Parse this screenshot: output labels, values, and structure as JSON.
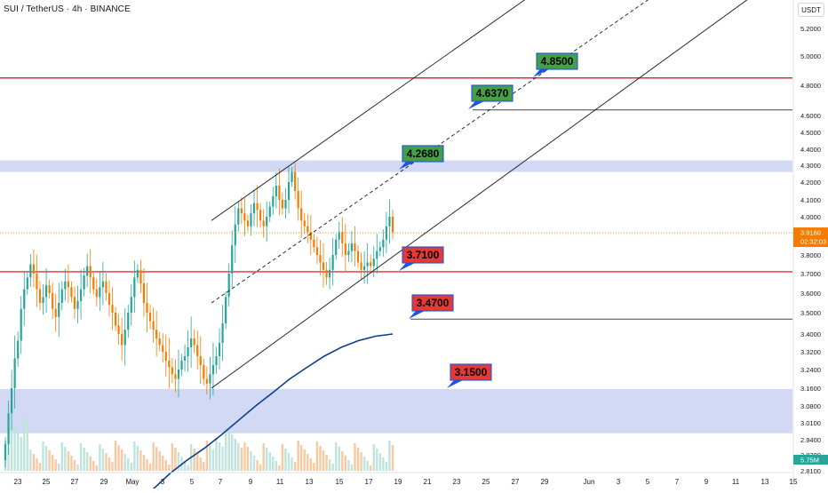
{
  "header": {
    "symbol_title": "SUI / TetherUS · 4h · BINANCE",
    "currency": "USDT"
  },
  "chart_data": {
    "type": "candlestick",
    "symbol": "SUI / TetherUS",
    "interval": "4h",
    "exchange": "BINANCE",
    "y_axis": {
      "ticks": [
        "5.2000",
        "5.0000",
        "4.8000",
        "4.6000",
        "4.5000",
        "4.4000",
        "4.3000",
        "4.2000",
        "4.1000",
        "4.0000",
        "3.8000",
        "3.7000",
        "3.6000",
        "3.5000",
        "3.4000",
        "3.3200",
        "3.2400",
        "3.1600",
        "3.0800",
        "3.0100",
        "2.9400",
        "2.8700",
        "2.8100"
      ]
    },
    "x_axis": {
      "ticks": [
        "23",
        "25",
        "27",
        "29",
        "May",
        "3",
        "5",
        "7",
        "9",
        "11",
        "13",
        "15",
        "17",
        "19",
        "21",
        "23",
        "25",
        "27",
        "29",
        "Jun",
        "3",
        "5",
        "7",
        "9",
        "11",
        "13",
        "15"
      ]
    },
    "current_price": {
      "value": 3.916,
      "label": "3.9160",
      "countdown": "02:32:03",
      "color": "#f57c00"
    },
    "volume_label": {
      "value": "5.75M",
      "color": "#26a69a"
    },
    "levels": [
      {
        "name": "resistance-4-85",
        "price": 4.85,
        "color": "#e03131"
      },
      {
        "name": "support-3-71",
        "price": 3.71,
        "color": "#e03131"
      },
      {
        "name": "line-4-637",
        "price": 4.637,
        "color": "#434651"
      },
      {
        "name": "line-3-47",
        "price": 3.47,
        "color": "#434651"
      }
    ],
    "zones": [
      {
        "name": "resistance-zone",
        "from": 4.26,
        "to": 4.33,
        "color": "#c5cff3"
      },
      {
        "name": "demand-zone",
        "from": 2.9667,
        "to": 3.1563,
        "color": "#c5cff3"
      }
    ],
    "targets": [
      {
        "label": "4.8500",
        "price": 4.85,
        "kind": "target",
        "color": "#43a047"
      },
      {
        "label": "4.6370",
        "price": 4.637,
        "kind": "target",
        "color": "#43a047"
      },
      {
        "label": "4.2680",
        "price": 4.268,
        "kind": "target",
        "color": "#43a047"
      },
      {
        "label": "3.7100",
        "price": 3.71,
        "kind": "support",
        "color": "#e53935"
      },
      {
        "label": "3.4700",
        "price": 3.47,
        "kind": "support",
        "color": "#e53935"
      },
      {
        "label": "3.1500",
        "price": 3.15,
        "kind": "support",
        "color": "#e53935"
      }
    ],
    "channel": {
      "color": "#131722",
      "midline": "dashed"
    },
    "moving_average": {
      "color": "#0d3c8f"
    },
    "colors": {
      "up": "#26a69a",
      "down": "#f57c00",
      "volume_up": "#bfe3dd",
      "volume_down": "#f8c9a0"
    }
  }
}
